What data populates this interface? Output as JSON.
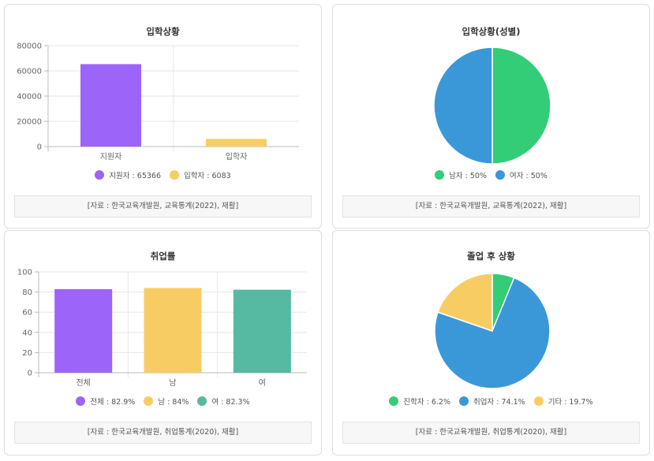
{
  "colors": {
    "purple": "#9c64f8",
    "yellow": "#f7cd63",
    "teal": "#56b9a2",
    "green": "#33cd77",
    "blue": "#3a98d8"
  },
  "panels": [
    {
      "title": "입학상황",
      "source": "[자료 : 한국교육개발원, 교육통계(2022), 재활]",
      "legend": [
        {
          "label": "지원자 : 65366",
          "color": "#9c64f8"
        },
        {
          "label": "입학자 : 6083",
          "color": "#f7cd63"
        }
      ]
    },
    {
      "title": "입학상황(성별)",
      "source": "[자료 : 한국교육개발원, 교육통계(2022), 재활]",
      "legend": [
        {
          "label": "남자 : 50%",
          "color": "#33cd77"
        },
        {
          "label": "여자 : 50%",
          "color": "#3a98d8"
        }
      ]
    },
    {
      "title": "취업률",
      "source": "[자료 : 한국교육개발원, 취업통계(2020), 재활]",
      "legend": [
        {
          "label": "전체 : 82.9%",
          "color": "#9c64f8"
        },
        {
          "label": "남 : 84%",
          "color": "#f7cd63"
        },
        {
          "label": "여 : 82.3%",
          "color": "#56b9a2"
        }
      ]
    },
    {
      "title": "졸업 후 상황",
      "source": "[자료 : 한국교육개발원, 취업통계(2020), 재활]",
      "legend": [
        {
          "label": "진학자 : 6.2%",
          "color": "#33cd77"
        },
        {
          "label": "취업자 : 74.1%",
          "color": "#3a98d8"
        },
        {
          "label": "기타 : 19.7%",
          "color": "#f7cd63"
        }
      ]
    }
  ],
  "chart_data": [
    {
      "type": "bar",
      "title": "입학상황",
      "categories": [
        "지원자",
        "입학자"
      ],
      "values": [
        65366,
        6083
      ],
      "colors": [
        "#9c64f8",
        "#f7cd63"
      ],
      "ylim": [
        0,
        80000
      ],
      "yticks": [
        "0",
        "20000",
        "40000",
        "60000",
        "80000"
      ],
      "grid": true,
      "legend": "bottom"
    },
    {
      "type": "pie",
      "title": "입학상황(성별)",
      "labels": [
        "남자",
        "여자"
      ],
      "values": [
        50,
        50
      ],
      "colors": [
        "#33cd77",
        "#3a98d8"
      ],
      "legend": "bottom"
    },
    {
      "type": "bar",
      "title": "취업률",
      "categories": [
        "전체",
        "남",
        "여"
      ],
      "values": [
        82.9,
        84,
        82.3
      ],
      "colors": [
        "#9c64f8",
        "#f7cd63",
        "#56b9a2"
      ],
      "ylim": [
        0,
        100
      ],
      "yticks": [
        "0",
        "20",
        "40",
        "60",
        "80",
        "100"
      ],
      "grid": true,
      "legend": "bottom"
    },
    {
      "type": "pie",
      "title": "졸업 후 상황",
      "labels": [
        "진학자",
        "취업자",
        "기타"
      ],
      "values": [
        6.2,
        74.1,
        19.7
      ],
      "colors": [
        "#33cd77",
        "#3a98d8",
        "#f7cd63"
      ],
      "legend": "bottom"
    }
  ]
}
